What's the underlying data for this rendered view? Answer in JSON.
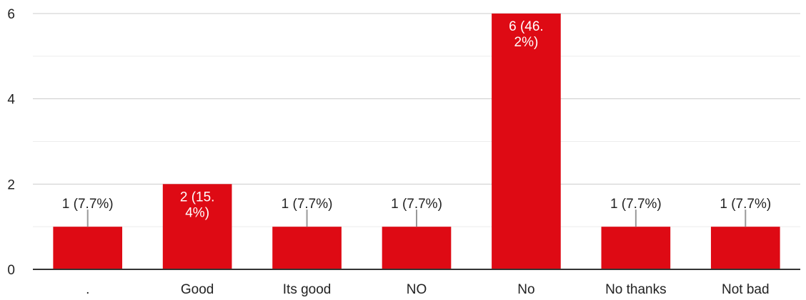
{
  "chart_data": {
    "type": "bar",
    "categories": [
      ".",
      "Good",
      "Its good",
      "NO",
      "No",
      "No thanks",
      "Not bad"
    ],
    "values": [
      1,
      2,
      1,
      1,
      6,
      1,
      1
    ],
    "data_labels": [
      "1 (7.7%)",
      "2 (15.\n4%)",
      "1 (7.7%)",
      "1 (7.7%)",
      "6 (46.\n2%)",
      "1 (7.7%)",
      "1 (7.7%)"
    ],
    "yticks": [
      "0",
      "2",
      "4",
      "6"
    ],
    "ylim": [
      0,
      6
    ],
    "grid": true,
    "bar_color": "#de0a14",
    "title": "",
    "xlabel": "",
    "ylabel": ""
  }
}
